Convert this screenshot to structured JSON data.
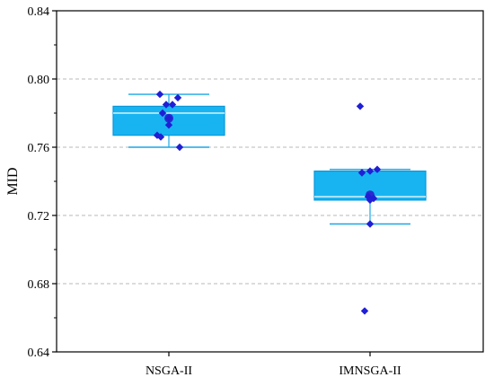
{
  "chart_data": {
    "type": "box",
    "title": "",
    "xlabel": "",
    "ylabel": "MID",
    "ylim": [
      0.64,
      0.84
    ],
    "y_ticks": [
      0.64,
      0.68,
      0.72,
      0.76,
      0.8,
      0.84
    ],
    "y_tick_labels": [
      "0.64",
      "0.68",
      "0.72",
      "0.76",
      "0.80",
      "0.84"
    ],
    "grid": true,
    "legend": "none",
    "categories": [
      "NSGA-II",
      "IMNSGA-II"
    ],
    "series": [
      {
        "category": "NSGA-II",
        "whisker_low": 0.76,
        "q1": 0.767,
        "median": 0.78,
        "q3": 0.784,
        "whisker_high": 0.791,
        "mean": 0.777,
        "points": [
          {
            "dx": -0.1,
            "y": 0.791
          },
          {
            "dx": 0.1,
            "y": 0.789
          },
          {
            "dx": -0.03,
            "y": 0.785
          },
          {
            "dx": 0.04,
            "y": 0.785
          },
          {
            "dx": -0.07,
            "y": 0.78
          },
          {
            "dx": 0.0,
            "y": 0.777
          },
          {
            "dx": 0.0,
            "y": 0.773
          },
          {
            "dx": -0.13,
            "y": 0.767
          },
          {
            "dx": -0.09,
            "y": 0.766
          },
          {
            "dx": 0.12,
            "y": 0.76
          }
        ]
      },
      {
        "category": "IMNSGA-II",
        "whisker_low": 0.715,
        "q1": 0.729,
        "median": 0.731,
        "q3": 0.746,
        "whisker_high": 0.747,
        "mean": 0.732,
        "points": [
          {
            "dx": -0.11,
            "y": 0.784
          },
          {
            "dx": 0.0,
            "y": 0.746
          },
          {
            "dx": 0.08,
            "y": 0.747
          },
          {
            "dx": -0.09,
            "y": 0.745
          },
          {
            "dx": -0.02,
            "y": 0.731
          },
          {
            "dx": 0.04,
            "y": 0.73
          },
          {
            "dx": 0.0,
            "y": 0.729
          },
          {
            "dx": 0.0,
            "y": 0.715
          },
          {
            "dx": -0.06,
            "y": 0.664
          }
        ]
      }
    ],
    "colors": {
      "box_fill": "#18b4f2",
      "box_edge": "#0a97d8",
      "whisker": "#1aa6e6",
      "points": "#1f1fd6",
      "mean_marker": "#2b2bd0",
      "median_line": "#ffffff",
      "grid": "#b8b8b8",
      "axis": "#000000"
    }
  }
}
